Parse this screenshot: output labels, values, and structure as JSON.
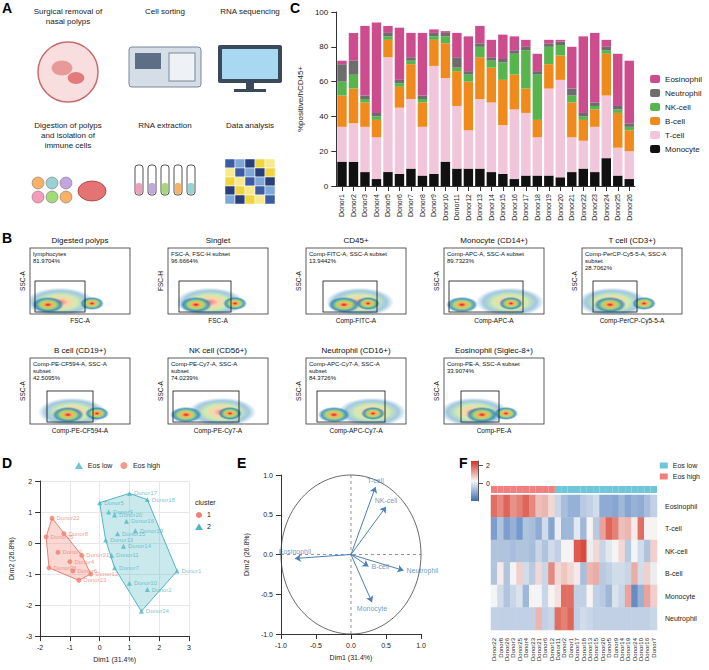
{
  "panel_a": {
    "panel_label": "A",
    "steps": [
      "Surgical removal of nasal polyps",
      "Cell sorting",
      "RNA sequencing",
      "Digestion of polyps and isolation of immune cells",
      "RNA extraction",
      "Data analysis"
    ]
  },
  "panel_b": {
    "panel_label": "B",
    "plots": [
      {
        "title": "Digested polyps",
        "x_label": "FSC-A",
        "y_label": "SSC-A",
        "gate": "lymphocytes",
        "gate_percent": "81.9704%"
      },
      {
        "title": "Singlet",
        "x_label": "FSC-A",
        "y_label": "FSC-H",
        "gate": "FSC-A, FSC-H subset",
        "gate_percent": "96.6664%"
      },
      {
        "title": "CD45+",
        "x_label": "Comp-FITC-A",
        "y_label": "SSC-A",
        "gate": "Comp-FITC-A, SSC-A subset",
        "gate_percent": "13.9442%"
      },
      {
        "title": "Monocyte (CD14+)",
        "x_label": "Comp-APC-A",
        "y_label": "SSC-A",
        "gate": "Comp-APC-A, SSC-A subset",
        "gate_percent": "89.7323%"
      },
      {
        "title": "T cell (CD3+)",
        "x_label": "Comp-PerCP-Cy5-5-A",
        "y_label": "SSC-A",
        "gate": "Comp-PerCP-Cy5-5-A, SSC-A subset",
        "gate_percent": "28.7062%"
      },
      {
        "title": "B cell (CD19+)",
        "x_label": "Comp-PE-CF594-A",
        "y_label": "SSC-A",
        "gate": "Comp-PE-CF594-A, SSC-A subset",
        "gate_percent": "42.5095%"
      },
      {
        "title": "NK cell (CD56+)",
        "x_label": "Comp-PE-Cy7-A",
        "y_label": "SSC-A",
        "gate": "Comp-PE-Cy7-A, SSC-A subset",
        "gate_percent": "74.0239%"
      },
      {
        "title": "Neutrophil (CD16+)",
        "x_label": "Comp-APC-Cy7-A",
        "y_label": "SSC-A",
        "gate": "Comp-APC-Cy7-A, SSC-A subset",
        "gate_percent": "84.3726%"
      },
      {
        "title": "Eosinophil (Siglec-8+)",
        "x_label": "Comp-PE-A",
        "y_label": "SSC-A",
        "gate": "Comp-PE-A, SSC-A subset",
        "gate_percent": "33.9074%"
      }
    ]
  },
  "chart_data": [
    {
      "panel_label": "C",
      "type": "bar",
      "stacked": true,
      "grid": false,
      "legend": "right",
      "y_label": "%positive/hCD45+",
      "categories": [
        "Donor1",
        "Donor2",
        "Donor3",
        "Donor4",
        "Donor5",
        "Donor6",
        "Donor7",
        "Donor8",
        "Donor9",
        "Donor10",
        "Donor11",
        "Donor12",
        "Donor13",
        "Donor14",
        "Donor15",
        "Donor16",
        "Donor17",
        "Donor18",
        "Donor19",
        "Donor20",
        "Donor21",
        "Donor22",
        "Donor23",
        "Donor24",
        "Donor25",
        "Donor26"
      ],
      "ylim": [
        0,
        100
      ],
      "yticks": [
        0,
        20,
        40,
        60,
        80,
        100
      ],
      "series": [
        {
          "name": "Monocyte",
          "color": "#111111",
          "values": [
            14,
            14,
            8,
            4,
            8,
            7,
            10,
            6,
            7,
            14,
            10,
            10,
            10,
            8,
            7,
            4,
            6,
            6,
            6,
            5,
            8,
            10,
            8,
            16,
            6,
            4
          ]
        },
        {
          "name": "T-cell",
          "color": "#f2c6da",
          "values": [
            20,
            22,
            26,
            24,
            66,
            38,
            40,
            28,
            62,
            48,
            36,
            22,
            40,
            40,
            28,
            40,
            36,
            22,
            50,
            56,
            20,
            16,
            26,
            36,
            16,
            16
          ]
        },
        {
          "name": "B-cell",
          "color": "#f08a1c",
          "values": [
            18,
            20,
            14,
            10,
            10,
            12,
            20,
            14,
            15,
            20,
            20,
            28,
            24,
            20,
            26,
            20,
            14,
            10,
            14,
            14,
            20,
            12,
            10,
            24,
            20,
            12
          ]
        },
        {
          "name": "NK-cell",
          "color": "#58b44c",
          "values": [
            8,
            8,
            2,
            2,
            2,
            2,
            2,
            2,
            2,
            4,
            2,
            4,
            6,
            4,
            10,
            12,
            22,
            26,
            10,
            6,
            4,
            2,
            2,
            2,
            2,
            2
          ]
        },
        {
          "name": "Neutrophil",
          "color": "#6d6d6d",
          "values": [
            10,
            8,
            2,
            2,
            2,
            2,
            2,
            2,
            2,
            2,
            6,
            2,
            2,
            2,
            2,
            2,
            2,
            2,
            2,
            2,
            4,
            2,
            2,
            2,
            2,
            2
          ]
        },
        {
          "name": "Eosinophil",
          "color": "#cc4c8e",
          "values": [
            2,
            16,
            40,
            52,
            4,
            30,
            14,
            36,
            2,
            1,
            14,
            20,
            10,
            10,
            14,
            8,
            4,
            10,
            2,
            1,
            24,
            44,
            40,
            4,
            30,
            36
          ]
        }
      ]
    },
    {
      "panel_label": "D",
      "type": "scatter",
      "grid": true,
      "legend": "top",
      "legend_title": "cluster",
      "x_label": "Dim1 (31.4%)",
      "y_label": "Dim2 (26.8%)",
      "xlim": [
        -2,
        3
      ],
      "xticks": [
        -2,
        -1,
        0,
        1,
        2,
        3
      ],
      "ylim": [
        -3,
        2
      ],
      "yticks": [
        -3,
        -2,
        -1,
        0,
        1,
        2
      ],
      "series": [
        {
          "name": "Eos low",
          "cluster": "2",
          "color": "#4fb6c4",
          "marker": "triangle",
          "labels": [
            "Donor17",
            "Donor18",
            "Donor16",
            "Donor15",
            "Donor19",
            "Donor20",
            "Donor9",
            "Donor13",
            "Donor14",
            "Donor11",
            "Donor7",
            "Donor5",
            "Donor10",
            "Donor24",
            "Donor1",
            "Donor2"
          ],
          "x": [
            1.0,
            1.6,
            0.9,
            0.6,
            1.2,
            0.5,
            0.3,
            0.2,
            0.8,
            0.4,
            0.5,
            0.0,
            1.0,
            1.4,
            2.6,
            1.6
          ],
          "y": [
            1.6,
            1.4,
            0.7,
            0.3,
            0.4,
            0.9,
            1.0,
            0.1,
            -0.1,
            -0.4,
            -0.8,
            1.3,
            -1.3,
            -2.2,
            -0.9,
            -1.5
          ]
        },
        {
          "name": "Eos high",
          "cluster": "1",
          "color": "#ef7f70",
          "marker": "circle",
          "labels": [
            "Donor22",
            "Donor8",
            "Donor25",
            "Donor3",
            "Donor4",
            "Donor21",
            "Donor6",
            "Donor23",
            "Donor26",
            "Donor12"
          ],
          "x": [
            -1.6,
            -1.2,
            -1.8,
            -1.4,
            -1.0,
            -0.6,
            -0.9,
            -0.7,
            -1.7,
            -0.3
          ],
          "y": [
            0.8,
            0.3,
            0.2,
            -0.3,
            -0.6,
            -0.4,
            -0.9,
            -1.2,
            -0.8,
            -1.0
          ]
        }
      ]
    },
    {
      "panel_label": "E",
      "type": "vector",
      "grid": false,
      "color": "#4a7fb5",
      "x_label": "Dim1 (31.4%)",
      "y_label": "Dim2 (26.8%)",
      "xlim": [
        -1,
        1
      ],
      "xticks": [
        {
          "value": -1,
          "label": "-1.0"
        },
        -0.5,
        {
          "value": 0,
          "label": "0.0"
        },
        0.5,
        {
          "value": 1,
          "label": "1.0"
        }
      ],
      "ylim": [
        -1,
        1
      ],
      "yticks": [
        {
          "value": -1,
          "label": "-1.0"
        },
        -0.5,
        {
          "value": 0,
          "label": "0.0"
        },
        0.5,
        {
          "value": 1,
          "label": "1.0"
        }
      ],
      "vectors": [
        {
          "label": "T-cell",
          "x": 0.35,
          "y": 0.85
        },
        {
          "label": "NK-cell",
          "x": 0.5,
          "y": 0.6
        },
        {
          "label": "Eosinophil",
          "x": -0.8,
          "y": -0.05
        },
        {
          "label": "B-cell",
          "x": 0.25,
          "y": -0.15
        },
        {
          "label": "Neutrophil",
          "x": 0.75,
          "y": -0.2
        },
        {
          "label": "Monocyte",
          "x": 0.3,
          "y": -0.6
        }
      ]
    },
    {
      "panel_label": "F",
      "type": "heatmap",
      "legend": "top-right",
      "columns": [
        "Donor22",
        "Donor8",
        "Donor26",
        "Donor3",
        "Donor25",
        "Donor4",
        "Donor23",
        "Donor21",
        "Donor6",
        "Donor12",
        "Donor11",
        "Donor2",
        "Donor1",
        "Donor17",
        "Donor18",
        "Donor13",
        "Donor15",
        "Donor20",
        "Donor5",
        "Donor9",
        "Donor14",
        "Donor19",
        "Donor24",
        "Donor10",
        "Donor16",
        "Donor7"
      ],
      "rows": [
        "Eosinophil",
        "T-cell",
        "NK-cell",
        "B-cell",
        "Monocyte",
        "Neutrophil"
      ],
      "values": [
        [
          1.8,
          1.5,
          1.9,
          1.4,
          1.6,
          1.9,
          1.5,
          0.9,
          1.0,
          0.6,
          -0.3,
          -0.7,
          -0.9,
          -0.9,
          -0.5,
          -0.4,
          -0.2,
          -1.0,
          -1.0,
          -1.1,
          -0.8,
          -1.1,
          -0.9,
          -1.0,
          -0.7,
          -0.4
        ],
        [
          -1.2,
          -0.6,
          -1.2,
          -0.9,
          -1.3,
          -0.6,
          -0.7,
          -1.0,
          -0.2,
          -1.1,
          0.1,
          -0.8,
          -0.8,
          0.0,
          -0.8,
          0.3,
          -0.5,
          1.2,
          1.9,
          1.6,
          0.9,
          1.0,
          0.4,
          1.8,
          0.3,
          0.3
        ],
        [
          -0.6,
          -0.6,
          -0.6,
          -0.7,
          -0.6,
          -0.6,
          -0.7,
          -0.3,
          -0.6,
          -0.2,
          -0.4,
          0.3,
          0.2,
          2.0,
          2.2,
          0.1,
          0.6,
          -0.3,
          0.0,
          0.3,
          0.6,
          -0.5,
          0.2,
          -0.2,
          -0.6,
          0.7
        ],
        [
          -0.6,
          0.4,
          -0.6,
          0.2,
          0.7,
          -0.2,
          -0.5,
          0.6,
          -0.3,
          1.5,
          0.6,
          0.8,
          0.6,
          0.4,
          -0.7,
          1.0,
          1.1,
          -0.5,
          -0.4,
          -0.2,
          -0.2,
          -0.3,
          1.1,
          -0.2,
          0.7,
          0.1
        ],
        [
          0.2,
          -0.2,
          -0.6,
          -0.3,
          -0.1,
          -0.8,
          0.3,
          0.2,
          -0.3,
          0.3,
          0.5,
          1.8,
          1.8,
          -0.4,
          -0.4,
          0.3,
          -0.4,
          -0.5,
          -0.8,
          -0.1,
          -0.3,
          1.2,
          -1.5,
          -0.9,
          1.2,
          0.7
        ],
        [
          -0.4,
          -0.4,
          -0.4,
          -0.4,
          -0.4,
          -0.4,
          -0.4,
          1.0,
          -0.4,
          -0.3,
          1.8,
          1.6,
          1.9,
          -0.4,
          -0.2,
          -0.3,
          -0.4,
          -0.4,
          -0.4,
          -0.4,
          -0.4,
          -0.4,
          -0.4,
          -0.4,
          -0.4,
          -0.3
        ]
      ],
      "groups": [
        "Eos high",
        "Eos high",
        "Eos high",
        "Eos high",
        "Eos high",
        "Eos high",
        "Eos high",
        "Eos high",
        "Eos high",
        "Eos high",
        "Eos low",
        "Eos low",
        "Eos low",
        "Eos low",
        "Eos low",
        "Eos low",
        "Eos low",
        "Eos low",
        "Eos low",
        "Eos low",
        "Eos low",
        "Eos low",
        "Eos low",
        "Eos low",
        "Eos low",
        "Eos low"
      ],
      "series": [
        {
          "name": "Eos low",
          "color": "#6ec6d8"
        },
        {
          "name": "Eos high",
          "color": "#f08080"
        }
      ],
      "colorbar": {
        "range": [
          -2,
          2.5
        ],
        "ticks": [
          0,
          2
        ],
        "colors": [
          "#3b6fb6",
          "#f7f7f7",
          "#d7301f"
        ]
      }
    }
  ]
}
